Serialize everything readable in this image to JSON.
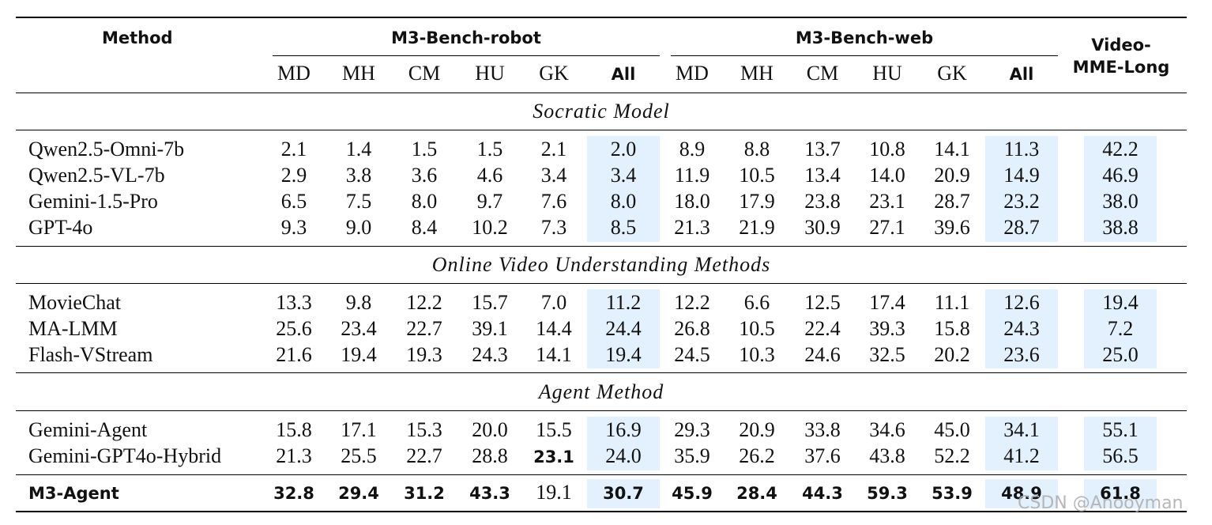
{
  "header": {
    "method": "Method",
    "group_robot": "M3-Bench-robot",
    "group_web": "M3-Bench-web",
    "group_video_line1": "Video-",
    "group_video_line2": "MME-Long",
    "sub_columns": [
      "MD",
      "MH",
      "CM",
      "HU",
      "GK",
      "All"
    ]
  },
  "sections": [
    {
      "title": "Socratic Model",
      "rows": [
        {
          "method": "Qwen2.5-Omni-7b",
          "robot": [
            "2.1",
            "1.4",
            "1.5",
            "1.5",
            "2.1",
            "2.0"
          ],
          "web": [
            "8.9",
            "8.8",
            "13.7",
            "10.8",
            "14.1",
            "11.3"
          ],
          "video": "42.2"
        },
        {
          "method": "Qwen2.5-VL-7b",
          "robot": [
            "2.9",
            "3.8",
            "3.6",
            "4.6",
            "3.4",
            "3.4"
          ],
          "web": [
            "11.9",
            "10.5",
            "13.4",
            "14.0",
            "20.9",
            "14.9"
          ],
          "video": "46.9"
        },
        {
          "method": "Gemini-1.5-Pro",
          "robot": [
            "6.5",
            "7.5",
            "8.0",
            "9.7",
            "7.6",
            "8.0"
          ],
          "web": [
            "18.0",
            "17.9",
            "23.8",
            "23.1",
            "28.7",
            "23.2"
          ],
          "video": "38.0"
        },
        {
          "method": "GPT-4o",
          "robot": [
            "9.3",
            "9.0",
            "8.4",
            "10.2",
            "7.3",
            "8.5"
          ],
          "web": [
            "21.3",
            "21.9",
            "30.9",
            "27.1",
            "39.6",
            "28.7"
          ],
          "video": "38.8"
        }
      ]
    },
    {
      "title": "Online Video Understanding Methods",
      "rows": [
        {
          "method": "MovieChat",
          "robot": [
            "13.3",
            "9.8",
            "12.2",
            "15.7",
            "7.0",
            "11.2"
          ],
          "web": [
            "12.2",
            "6.6",
            "12.5",
            "17.4",
            "11.1",
            "12.6"
          ],
          "video": "19.4"
        },
        {
          "method": "MA-LMM",
          "robot": [
            "25.6",
            "23.4",
            "22.7",
            "39.1",
            "14.4",
            "24.4"
          ],
          "web": [
            "26.8",
            "10.5",
            "22.4",
            "39.3",
            "15.8",
            "24.3"
          ],
          "video": "7.2"
        },
        {
          "method": "Flash-VStream",
          "robot": [
            "21.6",
            "19.4",
            "19.3",
            "24.3",
            "14.1",
            "19.4"
          ],
          "web": [
            "24.5",
            "10.3",
            "24.6",
            "32.5",
            "20.2",
            "23.6"
          ],
          "video": "25.0"
        }
      ]
    },
    {
      "title": "Agent Method",
      "rows": [
        {
          "method": "Gemini-Agent",
          "robot": [
            "15.8",
            "17.1",
            "15.3",
            "20.0",
            "15.5",
            "16.9"
          ],
          "web": [
            "29.3",
            "20.9",
            "33.8",
            "34.6",
            "45.0",
            "34.1"
          ],
          "video": "55.1"
        },
        {
          "method": "Gemini-GPT4o-Hybrid",
          "robot": [
            "21.3",
            "25.5",
            "22.7",
            "28.8",
            "23.1",
            "24.0"
          ],
          "web": [
            "35.9",
            "26.2",
            "37.6",
            "43.8",
            "52.2",
            "41.2"
          ],
          "video": "56.5"
        }
      ]
    }
  ],
  "final_row": {
    "method": "M3-Agent",
    "robot": [
      "32.8",
      "29.4",
      "31.2",
      "43.3",
      "19.1",
      "30.7"
    ],
    "web": [
      "45.9",
      "28.4",
      "44.3",
      "59.3",
      "53.9",
      "48.9"
    ],
    "video": "61.8"
  },
  "watermark": "CSDN @Anooyman",
  "colors": {
    "highlight": "#e3f0fd"
  }
}
